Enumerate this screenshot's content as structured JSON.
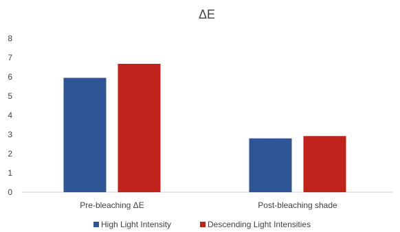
{
  "chart_data": {
    "type": "bar",
    "title": "ΔE",
    "categories": [
      "Pre-bleaching  ΔE",
      "Post-bleaching shade"
    ],
    "series": [
      {
        "name": "High Light Intensity",
        "color": "#2F5597",
        "values": [
          5.95,
          2.8
        ]
      },
      {
        "name": "Descending Light Intensities",
        "color": "#C0211A",
        "values": [
          6.68,
          2.92
        ]
      }
    ],
    "xlabel": "",
    "ylabel": "",
    "ylim": [
      0,
      8
    ],
    "yticks": [
      "0",
      "1",
      "2",
      "3",
      "4",
      "5",
      "6",
      "7",
      "8"
    ],
    "grid": false,
    "legend_position": "bottom"
  }
}
